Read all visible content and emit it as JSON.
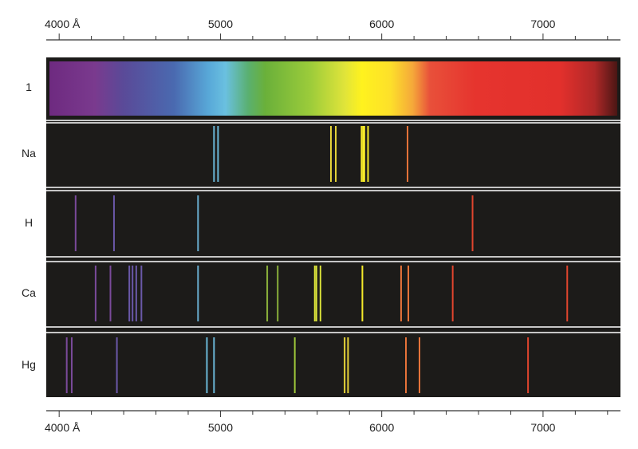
{
  "axis": {
    "unit": "Å",
    "min": 3920,
    "max": 7480,
    "major_ticks": [
      4000,
      5000,
      6000,
      7000
    ],
    "minor_step": 200,
    "tick_labels": [
      "4000 Å",
      "5000",
      "6000",
      "7000"
    ]
  },
  "rows": [
    {
      "label": "1",
      "type": "continuum"
    },
    {
      "label": "Na",
      "type": "lines",
      "lines": [
        {
          "w": 4960,
          "color": "#6bb8d8"
        },
        {
          "w": 4985,
          "color": "#6bb8d8"
        },
        {
          "w": 5685,
          "color": "#e8d63a"
        },
        {
          "w": 5715,
          "color": "#e8d63a"
        },
        {
          "w": 5875,
          "color": "#f5ea2a"
        },
        {
          "w": 5885,
          "color": "#f5ea2a"
        },
        {
          "w": 5892,
          "color": "#f5ea2a"
        },
        {
          "w": 5915,
          "color": "#f5ea2a"
        },
        {
          "w": 6160,
          "color": "#e8743a"
        }
      ]
    },
    {
      "label": "H",
      "type": "lines",
      "lines": [
        {
          "w": 4102,
          "color": "#7a4a9a"
        },
        {
          "w": 4340,
          "color": "#6a58a8"
        },
        {
          "w": 4861,
          "color": "#6aaed0"
        },
        {
          "w": 6563,
          "color": "#e0452e"
        }
      ]
    },
    {
      "label": "Ca",
      "type": "lines",
      "lines": [
        {
          "w": 4226,
          "color": "#7a4a9a"
        },
        {
          "w": 4318,
          "color": "#7a4a9a"
        },
        {
          "w": 4435,
          "color": "#6a58a8"
        },
        {
          "w": 4455,
          "color": "#6a58a8"
        },
        {
          "w": 4478,
          "color": "#6a58a8"
        },
        {
          "w": 4510,
          "color": "#6a58a8"
        },
        {
          "w": 4861,
          "color": "#6aaed0"
        },
        {
          "w": 5290,
          "color": "#8ab03a"
        },
        {
          "w": 5355,
          "color": "#8ab03a"
        },
        {
          "w": 5585,
          "color": "#d8e03a"
        },
        {
          "w": 5595,
          "color": "#d8e03a"
        },
        {
          "w": 5620,
          "color": "#d8e03a"
        },
        {
          "w": 5880,
          "color": "#f5ea2a"
        },
        {
          "w": 6120,
          "color": "#e8743a"
        },
        {
          "w": 6165,
          "color": "#e8743a"
        },
        {
          "w": 6440,
          "color": "#e0452e"
        },
        {
          "w": 7150,
          "color": "#e0452e"
        }
      ]
    },
    {
      "label": "Hg",
      "type": "lines",
      "lines": [
        {
          "w": 4047,
          "color": "#7a4a9a"
        },
        {
          "w": 4078,
          "color": "#7a4a9a"
        },
        {
          "w": 4358,
          "color": "#6a58a8"
        },
        {
          "w": 4916,
          "color": "#6bb8d8"
        },
        {
          "w": 4960,
          "color": "#6bb8d8"
        },
        {
          "w": 5461,
          "color": "#9cc43a"
        },
        {
          "w": 5770,
          "color": "#e8d63a"
        },
        {
          "w": 5791,
          "color": "#e8d63a"
        },
        {
          "w": 6150,
          "color": "#e8743a"
        },
        {
          "w": 6234,
          "color": "#e8743a"
        },
        {
          "w": 6907,
          "color": "#e0452e"
        }
      ]
    }
  ],
  "colors": {
    "panel": "#1c1b19",
    "separator": "#ffffff",
    "axis": "#333333"
  }
}
